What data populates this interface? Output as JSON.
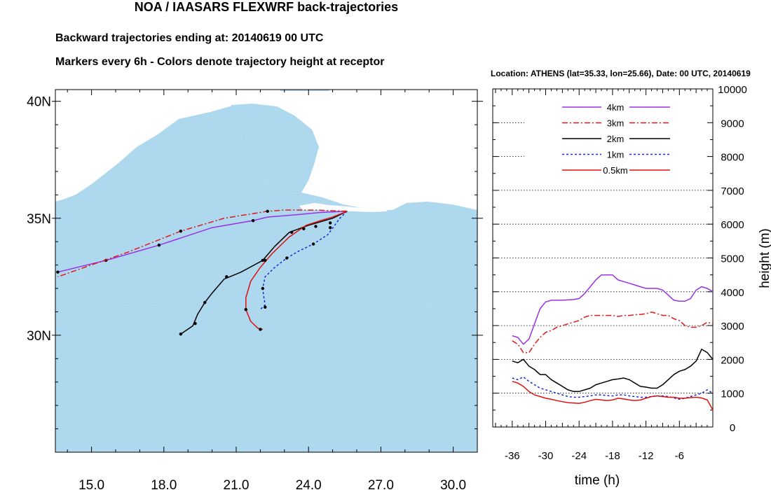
{
  "header": {
    "title": "NOA / IAASARS FLEXWRF back-trajectories",
    "line1": "Backward trajectories ending at: 20140619  00 UTC",
    "line2": "Markers every 6h - Colors denote trajectory height at receptor"
  },
  "colors": {
    "sea": "#add8ee",
    "land": "#ffffff",
    "4km": "#9b30e6",
    "3km": "#e0181c",
    "2km": "#000000",
    "1km": "#1428d8",
    "0.5km": "#e01010"
  },
  "chart_data": [
    {
      "type": "map",
      "xlim": [
        13.5,
        31.0
      ],
      "ylim": [
        25.0,
        40.5
      ],
      "x_ticks": [
        15,
        18,
        21,
        24,
        27,
        30
      ],
      "x_tick_labels": [
        "15.0",
        "18.0",
        "21.0",
        "24.0",
        "27.0",
        "30.0"
      ],
      "y_ticks": [
        30,
        35,
        40
      ],
      "y_tick_labels": [
        "30N",
        "35N",
        "40N"
      ],
      "receptor": [
        25.66,
        35.33
      ],
      "trajectories": [
        {
          "name": "4km",
          "style": "solid",
          "points": [
            [
              25.6,
              35.3
            ],
            [
              24.5,
              35.25
            ],
            [
              23.5,
              35.15
            ],
            [
              22.3,
              35.05
            ],
            [
              21.7,
              34.9
            ],
            [
              20.0,
              34.6
            ],
            [
              17.8,
              33.85
            ],
            [
              15.6,
              33.2
            ],
            [
              13.6,
              32.7
            ]
          ],
          "markers": [
            [
              21.7,
              34.9
            ],
            [
              17.8,
              33.85
            ],
            [
              15.6,
              33.2
            ],
            [
              13.6,
              32.7
            ]
          ]
        },
        {
          "name": "3km",
          "style": "dashdot",
          "points": [
            [
              25.6,
              35.3
            ],
            [
              24.3,
              35.35
            ],
            [
              23.0,
              35.35
            ],
            [
              22.3,
              35.3
            ],
            [
              20.5,
              35.0
            ],
            [
              18.7,
              34.45
            ],
            [
              16.5,
              33.55
            ],
            [
              13.6,
              32.5
            ]
          ],
          "markers": [
            [
              22.3,
              35.3
            ],
            [
              18.7,
              34.45
            ]
          ]
        },
        {
          "name": "2km",
          "style": "solid",
          "points": [
            [
              25.6,
              35.3
            ],
            [
              25.0,
              35.0
            ],
            [
              24.0,
              34.7
            ],
            [
              23.2,
              34.4
            ],
            [
              22.6,
              33.8
            ],
            [
              22.1,
              33.2
            ],
            [
              21.2,
              32.7
            ],
            [
              20.5,
              32.4
            ],
            [
              20.0,
              31.8
            ],
            [
              19.7,
              31.4
            ],
            [
              19.4,
              30.9
            ],
            [
              19.2,
              30.4
            ],
            [
              18.7,
              30.05
            ]
          ],
          "markers": [
            [
              24.9,
              34.8
            ],
            [
              23.3,
              34.4
            ],
            [
              22.1,
              33.2
            ],
            [
              20.6,
              32.5
            ],
            [
              19.7,
              31.4
            ],
            [
              19.3,
              30.5
            ],
            [
              18.7,
              30.05
            ]
          ]
        },
        {
          "name": "1km",
          "style": "dash",
          "points": [
            [
              25.6,
              35.3
            ],
            [
              25.3,
              35.0
            ],
            [
              24.8,
              34.3
            ],
            [
              24.2,
              33.9
            ],
            [
              23.6,
              33.6
            ],
            [
              23.1,
              33.3
            ],
            [
              22.6,
              32.9
            ],
            [
              22.2,
              32.5
            ],
            [
              22.1,
              32.0
            ],
            [
              22.15,
              31.6
            ],
            [
              22.2,
              31.3
            ],
            [
              22.0,
              31.1
            ]
          ],
          "markers": [
            [
              24.9,
              34.6
            ],
            [
              24.2,
              33.9
            ],
            [
              23.1,
              33.3
            ],
            [
              22.1,
              32.0
            ],
            [
              22.2,
              31.2
            ]
          ]
        },
        {
          "name": "0.5km",
          "style": "solid",
          "points": [
            [
              25.6,
              35.3
            ],
            [
              25.0,
              35.05
            ],
            [
              24.5,
              34.9
            ],
            [
              23.9,
              34.7
            ],
            [
              23.2,
              34.2
            ],
            [
              22.5,
              33.5
            ],
            [
              22.0,
              32.9
            ],
            [
              21.6,
              32.3
            ],
            [
              21.4,
              31.6
            ],
            [
              21.4,
              31.1
            ],
            [
              21.6,
              30.6
            ],
            [
              21.9,
              30.3
            ],
            [
              22.1,
              30.25
            ]
          ],
          "markers": [
            [
              24.3,
              34.65
            ],
            [
              23.8,
              34.55
            ],
            [
              22.2,
              33.2
            ],
            [
              21.4,
              31.1
            ],
            [
              22.0,
              30.25
            ]
          ]
        }
      ]
    },
    {
      "type": "line",
      "title": "Location: ATHENS (lat=35.33,  lon=25.66), Date: 00 UTC, 20140619",
      "xlabel": "time (h)",
      "ylabel": "height (m)",
      "xlim": [
        -39.5,
        0
      ],
      "ylim": [
        0,
        10000
      ],
      "x_ticks": [
        -36,
        -30,
        -24,
        -18,
        -12,
        -6
      ],
      "y_ticks": [
        0,
        1000,
        2000,
        3000,
        4000,
        5000,
        6000,
        7000,
        8000,
        9000,
        10000
      ],
      "series": [
        {
          "name": "4km",
          "style": "solid",
          "x": [
            -36,
            -35,
            -34,
            -33,
            -32,
            -31,
            -30,
            -29,
            -28,
            -27,
            -26,
            -25,
            -24,
            -23,
            -22,
            -21,
            -20,
            -19,
            -18,
            -17,
            -16,
            -15,
            -14,
            -13,
            -12,
            -11,
            -10,
            -9,
            -8,
            -7,
            -6,
            -5,
            -4,
            -3,
            -2,
            -1,
            0
          ],
          "y": [
            2700,
            2650,
            2450,
            2600,
            3050,
            3500,
            3700,
            3750,
            3750,
            3750,
            3760,
            3770,
            3800,
            3950,
            4150,
            4350,
            4500,
            4500,
            4500,
            4350,
            4300,
            4250,
            4200,
            4150,
            4100,
            4100,
            4100,
            4050,
            3900,
            3750,
            3720,
            3720,
            3800,
            4050,
            4150,
            4100,
            4000
          ]
        },
        {
          "name": "3km",
          "style": "dashdot",
          "x": [
            -36,
            -35,
            -34,
            -33,
            -32,
            -31,
            -30,
            -29,
            -28,
            -27,
            -26,
            -25,
            -24,
            -23,
            -22,
            -21,
            -20,
            -19,
            -18,
            -17,
            -16,
            -15,
            -14,
            -13,
            -12,
            -11,
            -10,
            -9,
            -8,
            -7,
            -6,
            -5,
            -4,
            -3,
            -2,
            -1,
            0
          ],
          "y": [
            2550,
            2450,
            2200,
            2200,
            2450,
            2650,
            2800,
            2850,
            2950,
            3000,
            3050,
            3100,
            3150,
            3250,
            3300,
            3300,
            3300,
            3300,
            3300,
            3270,
            3300,
            3300,
            3320,
            3330,
            3350,
            3400,
            3350,
            3300,
            3300,
            3200,
            3150,
            3000,
            2950,
            2950,
            3000,
            3100,
            3050
          ]
        },
        {
          "name": "2km",
          "style": "solid",
          "x": [
            -36,
            -35,
            -34,
            -33,
            -32,
            -31,
            -30,
            -29,
            -28,
            -27,
            -26,
            -25,
            -24,
            -23,
            -22,
            -21,
            -20,
            -19,
            -18,
            -17,
            -16,
            -15,
            -14,
            -13,
            -12,
            -11,
            -10,
            -9,
            -8,
            -7,
            -6,
            -5,
            -4,
            -3,
            -2,
            -1,
            0
          ],
          "y": [
            1950,
            1900,
            2000,
            1800,
            1700,
            1550,
            1550,
            1400,
            1300,
            1200,
            1100,
            1050,
            1050,
            1100,
            1150,
            1250,
            1300,
            1350,
            1400,
            1420,
            1450,
            1400,
            1300,
            1200,
            1180,
            1150,
            1150,
            1250,
            1400,
            1550,
            1650,
            1700,
            1800,
            1950,
            2300,
            2200,
            2000
          ]
        },
        {
          "name": "1km",
          "style": "dash",
          "x": [
            -36,
            -35,
            -34,
            -33,
            -32,
            -31,
            -30,
            -29,
            -28,
            -27,
            -26,
            -25,
            -24,
            -23,
            -22,
            -21,
            -20,
            -19,
            -18,
            -17,
            -16,
            -15,
            -14,
            -13,
            -12,
            -11,
            -10,
            -9,
            -8,
            -7,
            -6,
            -5,
            -4,
            -3,
            -2,
            -1,
            0
          ],
          "y": [
            1450,
            1400,
            1480,
            1350,
            1250,
            1150,
            1100,
            1050,
            1000,
            950,
            900,
            880,
            880,
            900,
            920,
            950,
            950,
            930,
            920,
            950,
            950,
            920,
            900,
            880,
            880,
            900,
            920,
            920,
            900,
            860,
            820,
            850,
            900,
            950,
            1000,
            1100,
            1000
          ]
        },
        {
          "name": "0.5km",
          "style": "solid",
          "x": [
            -36,
            -35,
            -34,
            -33,
            -32,
            -31,
            -30,
            -29,
            -28,
            -27,
            -26,
            -25,
            -24,
            -23,
            -22,
            -21,
            -20,
            -19,
            -18,
            -17,
            -16,
            -15,
            -14,
            -13,
            -12,
            -11,
            -10,
            -9,
            -8,
            -7,
            -6,
            -5,
            -4,
            -3,
            -2,
            -1,
            0
          ],
          "y": [
            1350,
            1300,
            1200,
            1050,
            950,
            900,
            850,
            820,
            780,
            750,
            720,
            710,
            700,
            730,
            780,
            820,
            800,
            780,
            800,
            850,
            830,
            800,
            780,
            800,
            850,
            900,
            920,
            900,
            880,
            880,
            850,
            850,
            870,
            880,
            860,
            800,
            500
          ]
        }
      ],
      "legend": {
        "placement": "top-center",
        "labels": [
          "4km",
          "3km",
          "2km",
          "1km",
          "0.5km"
        ]
      }
    }
  ]
}
